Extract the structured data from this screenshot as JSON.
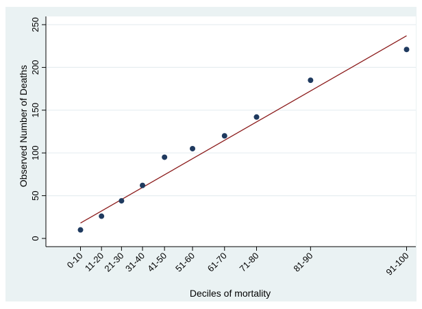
{
  "chart_data": {
    "type": "scatter",
    "xlabel": "Deciles of mortality",
    "ylabel": "Observed Number of Deaths",
    "ylim": [
      0,
      250
    ],
    "yticks": [
      0,
      50,
      100,
      150,
      200,
      250
    ],
    "grid": "horizontal",
    "points": [
      {
        "label": "0-10",
        "x": 5,
        "y": 10
      },
      {
        "label": "11-20",
        "x": 15.5,
        "y": 26
      },
      {
        "label": "21-30",
        "x": 25.5,
        "y": 44
      },
      {
        "label": "31-40",
        "x": 36,
        "y": 62
      },
      {
        "label": "41-50",
        "x": 47,
        "y": 95
      },
      {
        "label": "51-60",
        "x": 61,
        "y": 105
      },
      {
        "label": "61-70",
        "x": 77,
        "y": 120
      },
      {
        "label": "71-80",
        "x": 93,
        "y": 142
      },
      {
        "label": "81-90",
        "x": 120,
        "y": 185
      },
      {
        "label": "91-100",
        "x": 168,
        "y": 221
      }
    ],
    "fit_line": {
      "x": [
        5,
        168
      ],
      "y": [
        18,
        237
      ],
      "color": "#8b1a1a"
    },
    "marker_color": "#1f3a5f"
  }
}
